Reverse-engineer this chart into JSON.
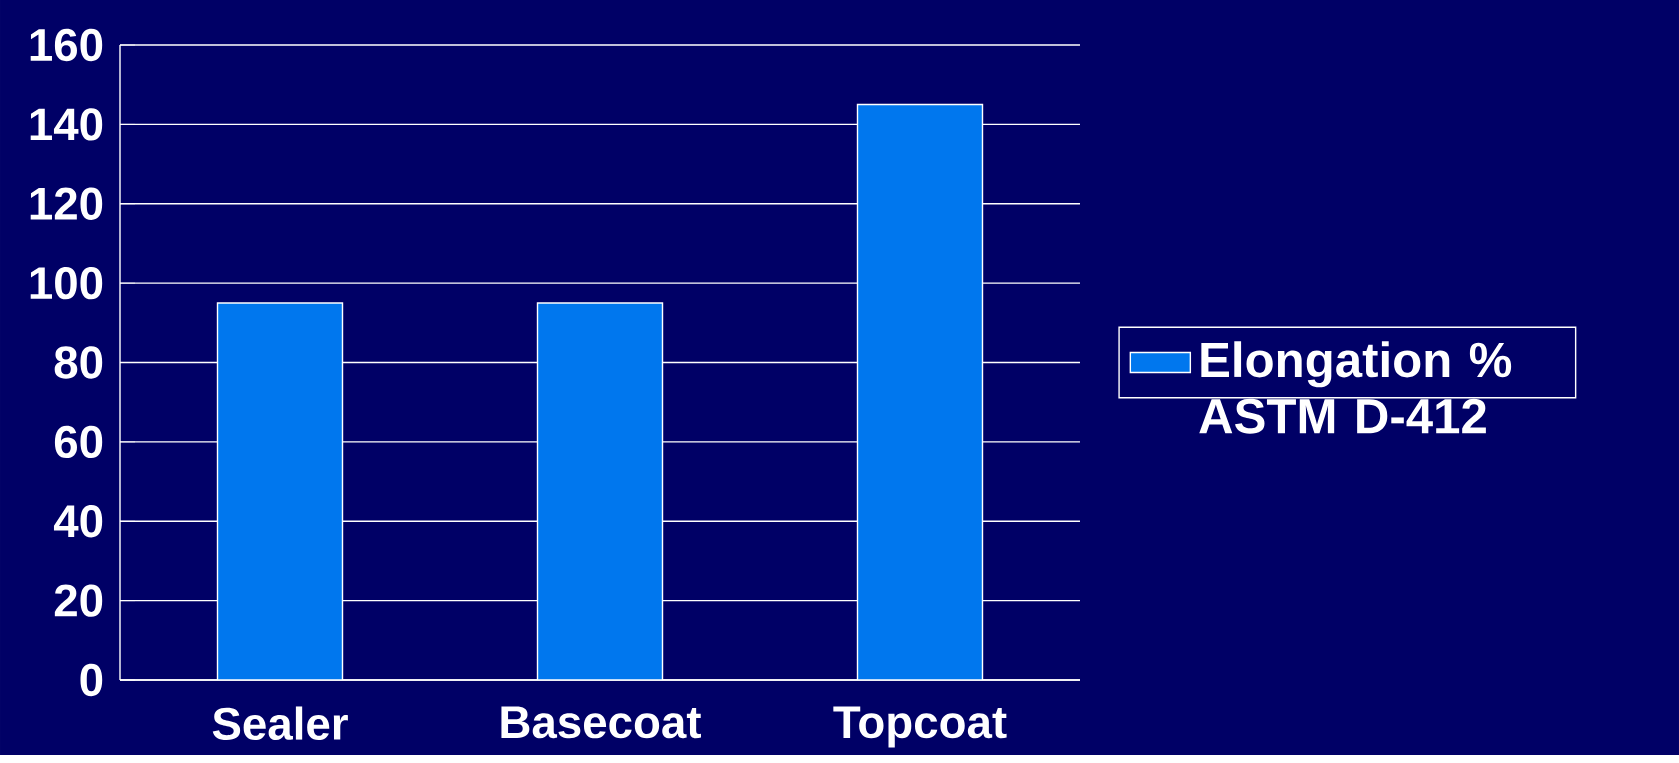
{
  "chart_data": {
    "type": "bar",
    "categories": [
      "Sealer",
      "Basecoat",
      "Topcoat"
    ],
    "series": [
      {
        "name": "Elongation % ASTM D-412",
        "color": "#0077ee",
        "values": [
          95,
          95,
          145
        ]
      }
    ],
    "ylim": [
      0,
      160
    ],
    "yticks": [
      0,
      20,
      40,
      60,
      80,
      100,
      120,
      140,
      160
    ],
    "grid": "y",
    "legend": "right"
  }
}
